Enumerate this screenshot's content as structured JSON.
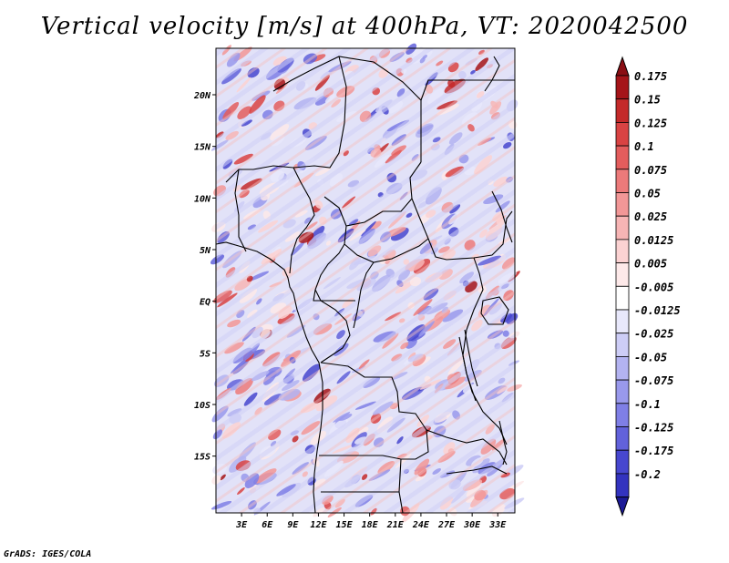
{
  "title": "Vertical velocity [m/s] at 400hPa, VT: 2020042500",
  "footer": "GrADS: IGES/COLA",
  "map": {
    "lon_range": [
      0,
      35
    ],
    "lat_range": [
      -20.5,
      24.5
    ],
    "lat_ticks": [
      {
        "value": 20,
        "label": "20N"
      },
      {
        "value": 15,
        "label": "15N"
      },
      {
        "value": 10,
        "label": "10N"
      },
      {
        "value": 5,
        "label": "5N"
      },
      {
        "value": 0,
        "label": "EQ"
      },
      {
        "value": -5,
        "label": "5S"
      },
      {
        "value": -10,
        "label": "10S"
      },
      {
        "value": -15,
        "label": "15S"
      }
    ],
    "lon_ticks": [
      {
        "value": 3,
        "label": "3E"
      },
      {
        "value": 6,
        "label": "6E"
      },
      {
        "value": 9,
        "label": "9E"
      },
      {
        "value": 12,
        "label": "12E"
      },
      {
        "value": 15,
        "label": "15E"
      },
      {
        "value": 18,
        "label": "18E"
      },
      {
        "value": 21,
        "label": "21E"
      },
      {
        "value": 24,
        "label": "24E"
      },
      {
        "value": 27,
        "label": "27E"
      },
      {
        "value": 30,
        "label": "30E"
      },
      {
        "value": 33,
        "label": "33E"
      }
    ]
  },
  "colorbar": {
    "levels": [
      {
        "label": "0.175",
        "color": "#a51419"
      },
      {
        "label": "0.15",
        "color": "#c42a2a"
      },
      {
        "label": "0.125",
        "color": "#d94343"
      },
      {
        "label": "0.1",
        "color": "#e35d5d"
      },
      {
        "label": "0.075",
        "color": "#ec7a7a"
      },
      {
        "label": "0.05",
        "color": "#f29797"
      },
      {
        "label": "0.025",
        "color": "#f7b5b5"
      },
      {
        "label": "0.0125",
        "color": "#fbd2d2"
      },
      {
        "label": "0.005",
        "color": "#fde9e9"
      },
      {
        "label": "-0.005",
        "color": "#ffffff"
      },
      {
        "label": "-0.0125",
        "color": "#e8e8fb"
      },
      {
        "label": "-0.025",
        "color": "#cdcdf6"
      },
      {
        "label": "-0.05",
        "color": "#b3b3f1"
      },
      {
        "label": "-0.075",
        "color": "#9999ec"
      },
      {
        "label": "-0.1",
        "color": "#7f7fe6"
      },
      {
        "label": "-0.125",
        "color": "#6262db"
      },
      {
        "label": "-0.175",
        "color": "#4747cf"
      },
      {
        "label": "-0.2",
        "color": "#3333bf"
      }
    ],
    "top_triangle_color": "#8a0e14",
    "bottom_triangle_color": "#1c1a96"
  }
}
